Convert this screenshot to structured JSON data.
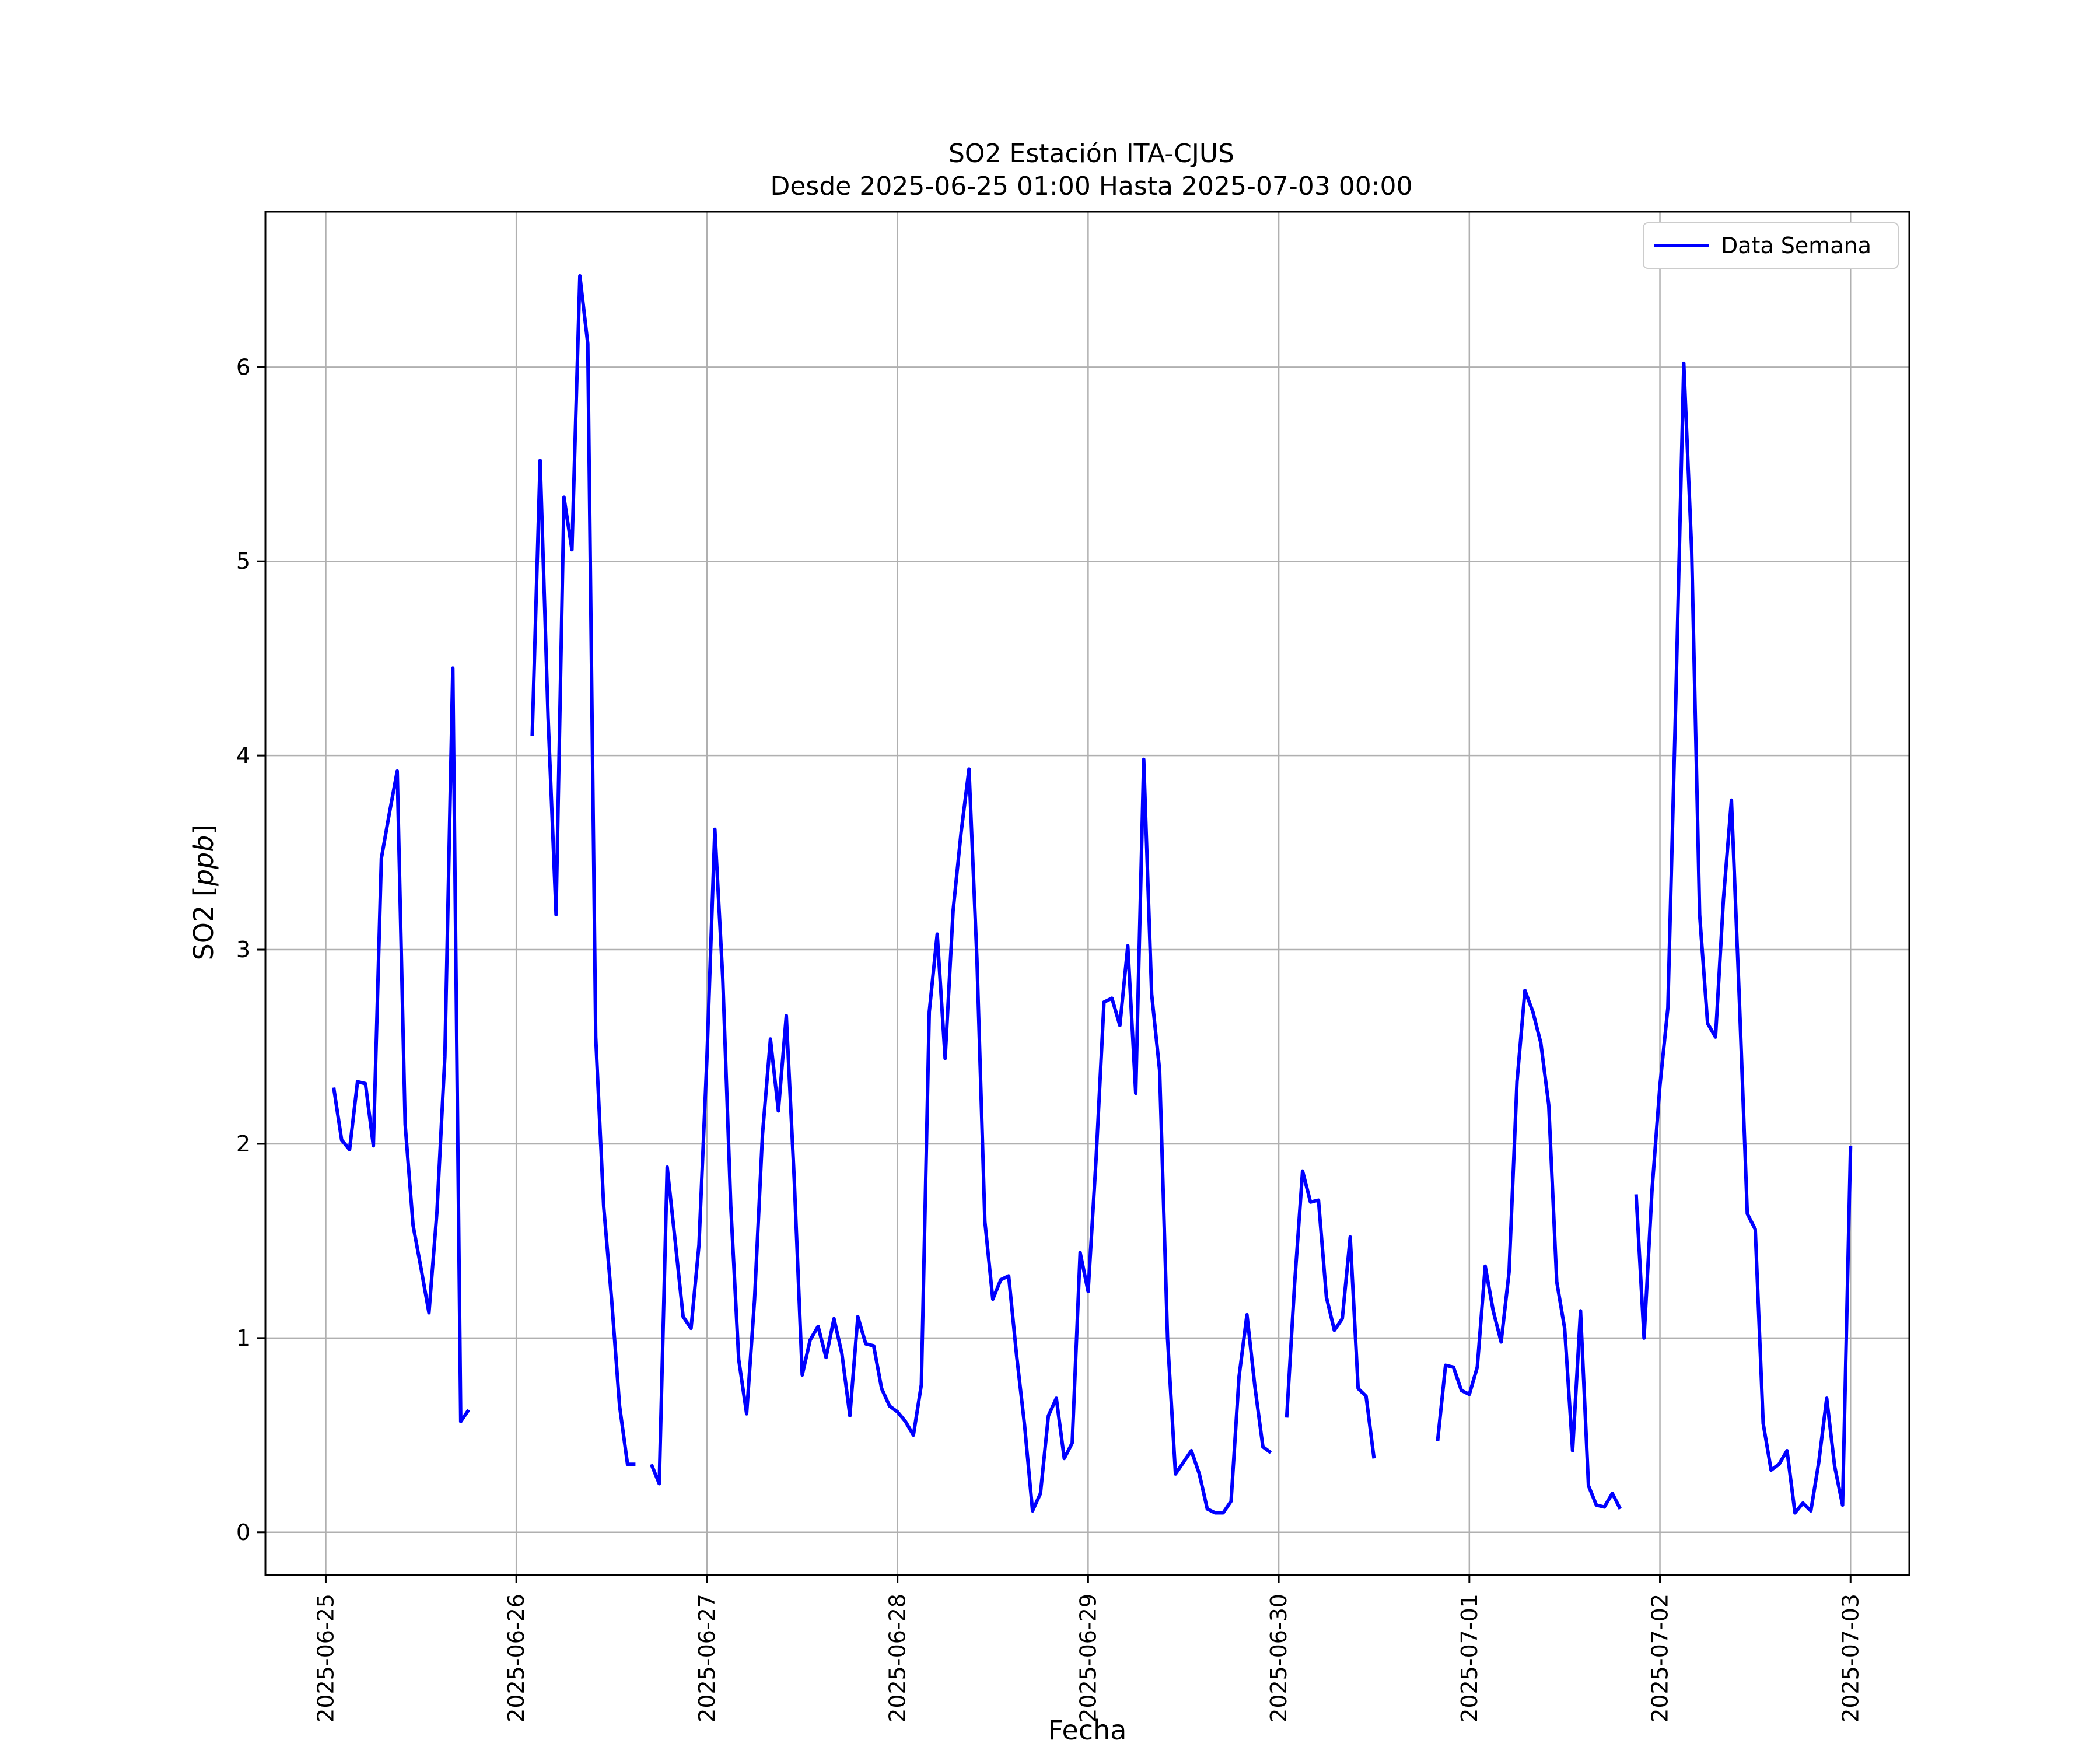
{
  "chart_data": {
    "type": "line",
    "title": "SO2 Estación ITA-CJUS",
    "subtitle": "Desde 2025-06-25 01:00 Hasta 2025-07-03 00:00",
    "xlabel": "Fecha",
    "ylabel": "SO2 [ppb]",
    "xlim": [
      "2025-06-24 16:24",
      "2025-07-03 07:24"
    ],
    "ylim": [
      -0.22,
      6.8
    ],
    "x_ticks": [
      "2025-06-25",
      "2025-06-26",
      "2025-06-27",
      "2025-06-28",
      "2025-06-29",
      "2025-06-30",
      "2025-07-01",
      "2025-07-02",
      "2025-07-03"
    ],
    "y_ticks": [
      0,
      1,
      2,
      3,
      4,
      5,
      6
    ],
    "y_tick_labels": [
      "0",
      "1",
      "2",
      "3",
      "4",
      "5",
      "6"
    ],
    "grid": true,
    "legend_position": "top-right",
    "series": [
      {
        "name": "Data Semana",
        "color": "#0000ff",
        "segments": [
          [
            [
              "2025-06-25 01:00",
              2.29
            ],
            [
              "2025-06-25 02:00",
              2.02
            ],
            [
              "2025-06-25 03:00",
              1.97
            ],
            [
              "2025-06-25 04:00",
              2.32
            ],
            [
              "2025-06-25 05:00",
              2.31
            ],
            [
              "2025-06-25 06:00",
              1.99
            ],
            [
              "2025-06-25 07:00",
              3.47
            ],
            [
              "2025-06-25 08:00",
              3.7
            ],
            [
              "2025-06-25 09:00",
              3.92
            ],
            [
              "2025-06-25 10:00",
              2.1
            ],
            [
              "2025-06-25 11:00",
              1.58
            ],
            [
              "2025-06-25 12:00",
              1.36
            ],
            [
              "2025-06-25 13:00",
              1.13
            ],
            [
              "2025-06-25 14:00",
              1.65
            ],
            [
              "2025-06-25 15:00",
              2.45
            ],
            [
              "2025-06-25 16:00",
              4.45
            ],
            [
              "2025-06-25 17:00",
              0.57
            ],
            [
              "2025-06-25 18:00",
              0.63
            ]
          ],
          [
            [
              "2025-06-26 02:00",
              4.1
            ],
            [
              "2025-06-26 03:00",
              5.52
            ],
            [
              "2025-06-26 04:00",
              4.2
            ],
            [
              "2025-06-26 05:00",
              3.18
            ],
            [
              "2025-06-26 06:00",
              5.33
            ],
            [
              "2025-06-26 07:00",
              5.06
            ],
            [
              "2025-06-26 08:00",
              6.47
            ],
            [
              "2025-06-26 09:00",
              6.12
            ],
            [
              "2025-06-26 10:00",
              2.55
            ],
            [
              "2025-06-26 11:00",
              1.68
            ],
            [
              "2025-06-26 12:00",
              1.2
            ],
            [
              "2025-06-26 13:00",
              0.65
            ],
            [
              "2025-06-26 14:00",
              0.35
            ],
            [
              "2025-06-26 15:00",
              0.35
            ]
          ],
          [
            [
              "2025-06-26 17:00",
              0.35
            ],
            [
              "2025-06-26 18:00",
              0.25
            ],
            [
              "2025-06-26 19:00",
              1.88
            ],
            [
              "2025-06-26 20:00",
              1.5
            ],
            [
              "2025-06-26 21:00",
              1.11
            ],
            [
              "2025-06-26 22:00",
              1.05
            ],
            [
              "2025-06-26 23:00",
              1.48
            ],
            [
              "2025-06-27 00:00",
              2.44
            ],
            [
              "2025-06-27 01:00",
              3.62
            ],
            [
              "2025-06-27 02:00",
              2.85
            ],
            [
              "2025-06-27 03:00",
              1.68
            ],
            [
              "2025-06-27 04:00",
              0.89
            ],
            [
              "2025-06-27 05:00",
              0.61
            ],
            [
              "2025-06-27 06:00",
              1.2
            ],
            [
              "2025-06-27 07:00",
              2.05
            ],
            [
              "2025-06-27 08:00",
              2.54
            ],
            [
              "2025-06-27 09:00",
              2.17
            ],
            [
              "2025-06-27 10:00",
              2.66
            ],
            [
              "2025-06-27 11:00",
              1.81
            ],
            [
              "2025-06-27 12:00",
              0.81
            ],
            [
              "2025-06-27 13:00",
              0.99
            ],
            [
              "2025-06-27 14:00",
              1.06
            ],
            [
              "2025-06-27 15:00",
              0.9
            ],
            [
              "2025-06-27 16:00",
              1.1
            ],
            [
              "2025-06-27 17:00",
              0.92
            ],
            [
              "2025-06-27 18:00",
              0.6
            ],
            [
              "2025-06-27 19:00",
              1.11
            ],
            [
              "2025-06-27 20:00",
              0.97
            ],
            [
              "2025-06-27 21:00",
              0.96
            ],
            [
              "2025-06-27 22:00",
              0.74
            ],
            [
              "2025-06-27 23:00",
              0.65
            ],
            [
              "2025-06-28 00:00",
              0.62
            ],
            [
              "2025-06-28 01:00",
              0.57
            ],
            [
              "2025-06-28 02:00",
              0.5
            ],
            [
              "2025-06-28 03:00",
              0.76
            ],
            [
              "2025-06-28 04:00",
              2.68
            ],
            [
              "2025-06-28 05:00",
              3.08
            ],
            [
              "2025-06-28 06:00",
              2.44
            ],
            [
              "2025-06-28 07:00",
              3.2
            ],
            [
              "2025-06-28 08:00",
              3.6
            ],
            [
              "2025-06-28 09:00",
              3.93
            ],
            [
              "2025-06-28 10:00",
              2.95
            ],
            [
              "2025-06-28 11:00",
              1.6
            ],
            [
              "2025-06-28 12:00",
              1.2
            ],
            [
              "2025-06-28 13:00",
              1.3
            ],
            [
              "2025-06-28 14:00",
              1.32
            ],
            [
              "2025-06-28 15:00",
              0.91
            ],
            [
              "2025-06-28 16:00",
              0.55
            ],
            [
              "2025-06-28 17:00",
              0.11
            ],
            [
              "2025-06-28 18:00",
              0.2
            ],
            [
              "2025-06-28 19:00",
              0.6
            ],
            [
              "2025-06-28 20:00",
              0.69
            ],
            [
              "2025-06-28 21:00",
              0.38
            ],
            [
              "2025-06-28 22:00",
              0.46
            ],
            [
              "2025-06-28 23:00",
              1.44
            ],
            [
              "2025-06-29 00:00",
              1.24
            ],
            [
              "2025-06-29 01:00",
              1.92
            ],
            [
              "2025-06-29 02:00",
              2.73
            ],
            [
              "2025-06-29 03:00",
              2.75
            ],
            [
              "2025-06-29 04:00",
              2.61
            ],
            [
              "2025-06-29 05:00",
              3.02
            ],
            [
              "2025-06-29 06:00",
              2.26
            ],
            [
              "2025-06-29 07:00",
              3.98
            ],
            [
              "2025-06-29 08:00",
              2.77
            ],
            [
              "2025-06-29 09:00",
              2.38
            ],
            [
              "2025-06-29 10:00",
              1.0
            ],
            [
              "2025-06-29 11:00",
              0.3
            ],
            [
              "2025-06-29 12:00",
              0.36
            ],
            [
              "2025-06-29 13:00",
              0.42
            ],
            [
              "2025-06-29 14:00",
              0.3
            ],
            [
              "2025-06-29 15:00",
              0.12
            ],
            [
              "2025-06-29 16:00",
              0.1
            ],
            [
              "2025-06-29 17:00",
              0.1
            ],
            [
              "2025-06-29 18:00",
              0.16
            ],
            [
              "2025-06-29 19:00",
              0.8
            ],
            [
              "2025-06-29 20:00",
              1.12
            ],
            [
              "2025-06-29 21:00",
              0.75
            ],
            [
              "2025-06-29 22:00",
              0.44
            ],
            [
              "2025-06-29 23:00",
              0.41
            ]
          ],
          [
            [
              "2025-06-30 01:00",
              0.59
            ],
            [
              "2025-06-30 02:00",
              1.28
            ],
            [
              "2025-06-30 03:00",
              1.86
            ],
            [
              "2025-06-30 04:00",
              1.7
            ],
            [
              "2025-06-30 05:00",
              1.71
            ],
            [
              "2025-06-30 06:00",
              1.21
            ],
            [
              "2025-06-30 07:00",
              1.04
            ],
            [
              "2025-06-30 08:00",
              1.1
            ],
            [
              "2025-06-30 09:00",
              1.52
            ],
            [
              "2025-06-30 10:00",
              0.74
            ],
            [
              "2025-06-30 11:00",
              0.7
            ],
            [
              "2025-06-30 12:00",
              0.38
            ]
          ],
          [
            [
              "2025-06-30 20:00",
              0.47
            ],
            [
              "2025-06-30 21:00",
              0.86
            ],
            [
              "2025-06-30 22:00",
              0.85
            ],
            [
              "2025-06-30 23:00",
              0.73
            ],
            [
              "2025-07-01 00:00",
              0.71
            ],
            [
              "2025-07-01 01:00",
              0.85
            ],
            [
              "2025-07-01 02:00",
              1.37
            ],
            [
              "2025-07-01 03:00",
              1.14
            ],
            [
              "2025-07-01 04:00",
              0.98
            ],
            [
              "2025-07-01 05:00",
              1.34
            ],
            [
              "2025-07-01 06:00",
              2.32
            ],
            [
              "2025-07-01 07:00",
              2.79
            ],
            [
              "2025-07-01 08:00",
              2.68
            ],
            [
              "2025-07-01 09:00",
              2.52
            ],
            [
              "2025-07-01 10:00",
              2.2
            ],
            [
              "2025-07-01 11:00",
              1.29
            ],
            [
              "2025-07-01 12:00",
              1.05
            ],
            [
              "2025-07-01 13:00",
              0.42
            ],
            [
              "2025-07-01 14:00",
              1.14
            ],
            [
              "2025-07-01 15:00",
              0.24
            ],
            [
              "2025-07-01 16:00",
              0.14
            ],
            [
              "2025-07-01 17:00",
              0.13
            ],
            [
              "2025-07-01 18:00",
              0.2
            ],
            [
              "2025-07-01 19:00",
              0.12
            ]
          ],
          [
            [
              "2025-07-01 21:00",
              1.74
            ],
            [
              "2025-07-01 22:00",
              1.0
            ],
            [
              "2025-07-01 23:00",
              1.76
            ],
            [
              "2025-07-02 00:00",
              2.3
            ],
            [
              "2025-07-02 01:00",
              2.7
            ],
            [
              "2025-07-02 02:00",
              4.3
            ],
            [
              "2025-07-02 03:00",
              6.02
            ],
            [
              "2025-07-02 04:00",
              5.05
            ],
            [
              "2025-07-02 05:00",
              3.18
            ],
            [
              "2025-07-02 06:00",
              2.62
            ],
            [
              "2025-07-02 07:00",
              2.55
            ],
            [
              "2025-07-02 08:00",
              3.26
            ],
            [
              "2025-07-02 09:00",
              3.77
            ],
            [
              "2025-07-02 10:00",
              2.74
            ],
            [
              "2025-07-02 11:00",
              1.64
            ],
            [
              "2025-07-02 12:00",
              1.56
            ],
            [
              "2025-07-02 13:00",
              0.56
            ],
            [
              "2025-07-02 14:00",
              0.32
            ],
            [
              "2025-07-02 15:00",
              0.35
            ],
            [
              "2025-07-02 16:00",
              0.42
            ],
            [
              "2025-07-02 17:00",
              0.1
            ],
            [
              "2025-07-02 18:00",
              0.15
            ],
            [
              "2025-07-02 19:00",
              0.11
            ],
            [
              "2025-07-02 20:00",
              0.36
            ],
            [
              "2025-07-02 21:00",
              0.69
            ],
            [
              "2025-07-02 22:00",
              0.34
            ],
            [
              "2025-07-02 23:00",
              0.14
            ],
            [
              "2025-07-03 00:00",
              1.99
            ]
          ]
        ]
      }
    ]
  }
}
